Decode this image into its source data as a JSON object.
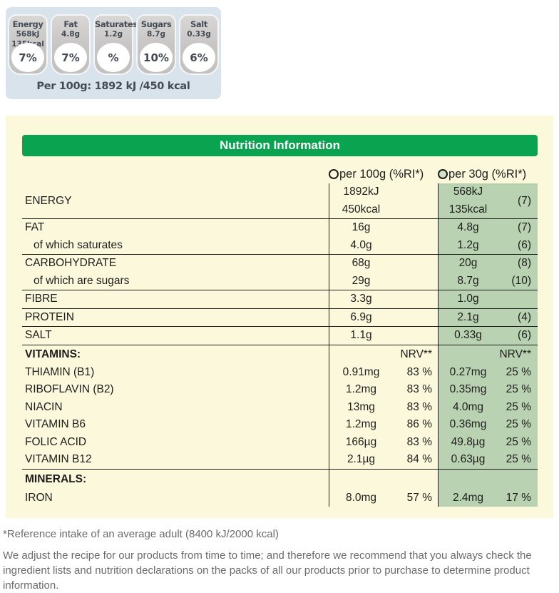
{
  "colors": {
    "header_green": "#0aa350",
    "panel_yellow": "#fcf8dc",
    "column_green": "#b9d2b1",
    "traffic_bg_blue": "#d9e3eb",
    "badge_gray": "#c6c5c3",
    "badge_text": "#454b54",
    "table_text": "#1d1d1b",
    "footnote_gray": "#6b6b6b"
  },
  "traffic_panel": {
    "badges": [
      {
        "name": "energy",
        "label": "Energy",
        "lines": [
          "568kJ",
          "135kcal"
        ],
        "percent": "7%"
      },
      {
        "name": "fat",
        "label": "Fat",
        "lines": [
          "4.8g"
        ],
        "percent": "7%"
      },
      {
        "name": "saturates",
        "label": "Saturates",
        "lines": [
          "1.2g"
        ],
        "percent": "%"
      },
      {
        "name": "sugars",
        "label": "Sugars",
        "lines": [
          "8.7g"
        ],
        "percent": "10%"
      },
      {
        "name": "salt",
        "label": "Salt",
        "lines": [
          "0.33g"
        ],
        "percent": "6%"
      }
    ],
    "per_100g_line": "Per 100g: 1892 kJ /450 kcal"
  },
  "table": {
    "title": "Nutrition Information",
    "columns": {
      "per100g": "per 100g (%RI*)",
      "per30g": "per 30g (%RI*)"
    },
    "rows": [
      {
        "label": "ENERGY",
        "v100": [
          "1892kJ",
          "450kcal"
        ],
        "p100": "",
        "v30": [
          "568kJ",
          "135kcal"
        ],
        "p30": "(7)",
        "sep": true,
        "tall": true
      },
      {
        "label": "FAT",
        "v100": "16g",
        "p100": "",
        "v30": "4.8g",
        "p30": "(7)"
      },
      {
        "label": "of which saturates",
        "indent": true,
        "v100": "4.0g",
        "p100": "",
        "v30": "1.2g",
        "p30": "(6)",
        "sep": true
      },
      {
        "label": "CARBOHYDRATE",
        "v100": "68g",
        "p100": "",
        "v30": "20g",
        "p30": "(8)"
      },
      {
        "label": "of which are sugars",
        "indent": true,
        "v100": "29g",
        "p100": "",
        "v30": "8.7g",
        "p30": "(10)",
        "sep": true
      },
      {
        "label": "FIBRE",
        "v100": "3.3g",
        "p100": "",
        "v30": "1.0g",
        "p30": "",
        "sep": true
      },
      {
        "label": "PROTEIN",
        "v100": "6.9g",
        "p100": "",
        "v30": "2.1g",
        "p30": "(4)",
        "sep": true
      },
      {
        "label": "SALT",
        "v100": "1.1g",
        "p100": "",
        "v30": "0.33g",
        "p30": "(6)",
        "sep": true
      },
      {
        "label": "VITAMINS:",
        "bold": true,
        "section": true,
        "v100": "",
        "p100": "NRV**",
        "v30": "",
        "p30": "NRV**"
      },
      {
        "label": "THIAMIN (B1)",
        "v100": "0.91mg",
        "p100": "83 %",
        "v30": "0.27mg",
        "p30": "25 %"
      },
      {
        "label": "RIBOFLAVIN (B2)",
        "v100": "1.2mg",
        "p100": "83 %",
        "v30": "0.35mg",
        "p30": "25 %"
      },
      {
        "label": "NIACIN",
        "v100": "13mg",
        "p100": "83 %",
        "v30": "4.0mg",
        "p30": "25 %"
      },
      {
        "label": "VITAMIN B6",
        "v100": "1.2mg",
        "p100": "86 %",
        "v30": "0.36mg",
        "p30": "25 %"
      },
      {
        "label": "FOLIC ACID",
        "v100": "166µg",
        "p100": "83 %",
        "v30": "49.8µg",
        "p30": "25 %"
      },
      {
        "label": "VITAMIN B12",
        "v100": "2.1µg",
        "p100": "84 %",
        "v30": "0.63µg",
        "p30": "25 %",
        "sep": true
      },
      {
        "label": "MINERALS:",
        "bold": true,
        "padtop": true,
        "v100": "",
        "p100": "",
        "v30": "",
        "p30": ""
      },
      {
        "label": "IRON",
        "v100": "8.0mg",
        "p100": "57 %",
        "v30": "2.4mg",
        "p30": "17 %"
      }
    ]
  },
  "footnotes": {
    "reference": "*Reference intake of an average adult (8400 kJ/2000 kcal)",
    "disclaimer": "We adjust the recipe for our products from time to time; and therefore we recommend that you always check the ingredient lists and nutrition declarations on the packs of all our products prior to purchase to determine product information."
  }
}
